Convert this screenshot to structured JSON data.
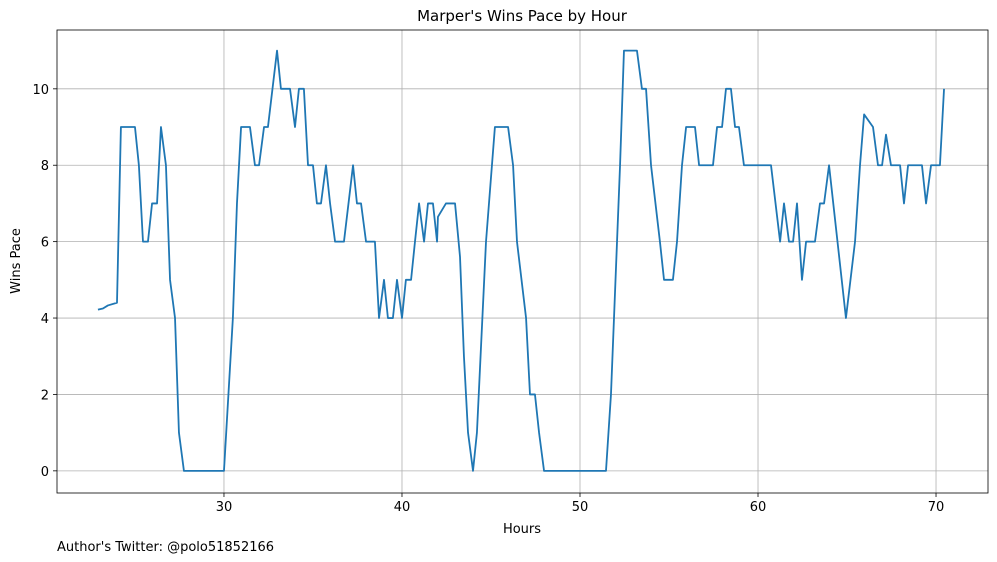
{
  "chart_data": {
    "type": "line",
    "title": "Marper's Wins Pace by Hour",
    "x_label": "Hours",
    "y_label": "Wins Pace",
    "footnote": "Author's Twitter: @polo51852166",
    "x": [
      22.92,
      23.2,
      23.48,
      23.99,
      24.21,
      25.0,
      25.22,
      25.45,
      25.73,
      25.96,
      26.24,
      26.46,
      26.74,
      26.97,
      27.25,
      27.47,
      27.75,
      30.0,
      30.5,
      30.73,
      30.96,
      31.46,
      31.74,
      31.97,
      32.25,
      32.47,
      32.98,
      33.2,
      33.71,
      33.99,
      34.21,
      34.49,
      34.72,
      35.0,
      35.22,
      35.45,
      35.73,
      35.96,
      36.24,
      36.74,
      37.25,
      37.47,
      37.7,
      37.98,
      38.48,
      38.71,
      38.99,
      39.21,
      39.49,
      39.72,
      40.0,
      40.22,
      40.51,
      40.73,
      40.96,
      41.24,
      41.46,
      41.74,
      41.97,
      42.02,
      42.47,
      42.98,
      43.26,
      43.48,
      43.71,
      43.99,
      44.21,
      44.72,
      45.22,
      45.96,
      46.24,
      46.46,
      46.97,
      47.19,
      47.47,
      47.7,
      47.98,
      51.46,
      51.74,
      52.25,
      52.47,
      53.2,
      53.48,
      53.71,
      53.99,
      54.49,
      54.72,
      55.22,
      55.45,
      55.73,
      55.96,
      56.46,
      56.69,
      57.47,
      57.7,
      57.98,
      58.2,
      58.48,
      58.71,
      58.93,
      59.21,
      60.73,
      61.24,
      61.46,
      61.74,
      61.97,
      62.19,
      62.47,
      62.7,
      63.2,
      63.48,
      63.71,
      63.99,
      64.94,
      65.45,
      65.73,
      65.96,
      66.46,
      66.74,
      66.97,
      67.19,
      67.47,
      67.98,
      68.2,
      68.43,
      69.21,
      69.44,
      69.72,
      70.22,
      70.45
    ],
    "series": [
      {
        "name": "Wins Pace",
        "color": "#1f77b4",
        "values": [
          4.22,
          4.25,
          4.33,
          4.4,
          9,
          9,
          8,
          6,
          6,
          7,
          7,
          9,
          8,
          5,
          4,
          1,
          0,
          0,
          4,
          7,
          9,
          9,
          8,
          8,
          9,
          9,
          11,
          10,
          10,
          9,
          10,
          10,
          8,
          8,
          7,
          7,
          8,
          7,
          6,
          6,
          8,
          7,
          7,
          6,
          6,
          4,
          5,
          4,
          4,
          5,
          4,
          5,
          5,
          6,
          7,
          6,
          7,
          7,
          6,
          6.65,
          7,
          7,
          5.6,
          3,
          1,
          0,
          1,
          6,
          9,
          9,
          8,
          6,
          4,
          2,
          2,
          1,
          0,
          0,
          2,
          8,
          11,
          11,
          10,
          10,
          8,
          6,
          5,
          5,
          6,
          8,
          9,
          9,
          8,
          8,
          9,
          9,
          10,
          10,
          9,
          9,
          8,
          8,
          6,
          7,
          6,
          6,
          7,
          5,
          6,
          6,
          7,
          7,
          8,
          4,
          6,
          8,
          9.33,
          9,
          8,
          8,
          8.8,
          8,
          8,
          7,
          8,
          8,
          7,
          8,
          8,
          10
        ]
      }
    ],
    "xlim": [
      20.62,
      72.92
    ],
    "ylim": [
      -0.58,
      11.54
    ],
    "xticks": [
      30,
      40,
      50,
      60,
      70
    ],
    "yticks": [
      0,
      2,
      4,
      6,
      8,
      10
    ],
    "grid": true
  }
}
